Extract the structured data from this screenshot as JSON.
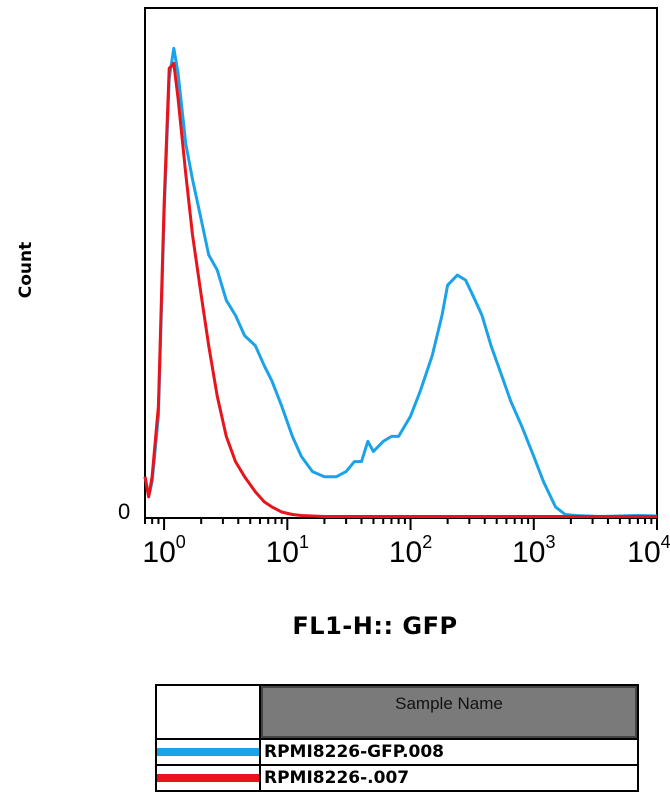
{
  "chart_data": {
    "type": "histogram",
    "xlabel": "FL1-H:: GFP",
    "ylabel": "Count",
    "x_scale": "log",
    "xlim": [
      0.7,
      10000
    ],
    "x_ticks": [
      {
        "base": "10",
        "exp": "0",
        "value": 1
      },
      {
        "base": "10",
        "exp": "1",
        "value": 10
      },
      {
        "base": "10",
        "exp": "2",
        "value": 100
      },
      {
        "base": "10",
        "exp": "3",
        "value": 1000
      },
      {
        "base": "10",
        "exp": "4",
        "value": 10000
      }
    ],
    "y_tick_label": "0",
    "ylim": [
      0,
      100
    ],
    "series": [
      {
        "name": "RPMI8226-GFP.008",
        "color": "#1aa3e8",
        "x": [
          0.7,
          0.75,
          0.8,
          0.9,
          1.0,
          1.1,
          1.2,
          1.3,
          1.5,
          1.7,
          2.0,
          2.3,
          2.7,
          3.2,
          3.8,
          4.5,
          5.5,
          6.5,
          7.5,
          9,
          11,
          13,
          16,
          20,
          25,
          30,
          35,
          40,
          45,
          50,
          60,
          70,
          80,
          100,
          120,
          150,
          180,
          200,
          240,
          280,
          320,
          380,
          450,
          550,
          650,
          800,
          1000,
          1200,
          1500,
          1800,
          2200,
          2700,
          3500,
          5000,
          7000,
          10000
        ],
        "values": [
          8,
          4,
          7,
          20,
          60,
          87,
          93,
          88,
          74,
          67,
          59,
          52,
          49,
          43,
          40,
          36,
          34,
          30,
          27,
          22,
          16,
          12,
          9,
          8,
          8,
          9,
          11,
          11,
          15,
          13,
          15,
          16,
          16,
          20,
          25,
          32,
          40,
          46,
          48,
          47,
          44,
          40,
          34,
          28,
          23,
          18,
          12,
          7,
          2,
          0.5,
          0.3,
          0.2,
          0.1,
          0.2,
          0.3,
          0.2
        ]
      },
      {
        "name": "RPMI8226-.007",
        "color": "#e8141c",
        "x": [
          0.7,
          0.75,
          0.8,
          0.9,
          1.0,
          1.1,
          1.2,
          1.3,
          1.5,
          1.7,
          2.0,
          2.3,
          2.7,
          3.2,
          3.8,
          4.5,
          5.5,
          6.5,
          7.5,
          9,
          11,
          13,
          16,
          20,
          30,
          50,
          100,
          200,
          500,
          1000,
          2000,
          5000,
          10000
        ],
        "values": [
          8,
          4,
          8,
          22,
          62,
          89,
          90,
          83,
          68,
          56,
          44,
          34,
          24,
          16,
          11,
          8,
          5,
          3,
          2,
          1,
          0.5,
          0.3,
          0.2,
          0.1,
          0.1,
          0.1,
          0.1,
          0.1,
          0.1,
          0.1,
          0.1,
          0.1,
          0.1
        ]
      }
    ],
    "legend": {
      "header": "Sample Name",
      "entries": [
        {
          "label": "RPMI8226-GFP.008",
          "color": "#1aa3e8"
        },
        {
          "label": "RPMI8226-.007",
          "color": "#e8141c"
        }
      ]
    }
  }
}
